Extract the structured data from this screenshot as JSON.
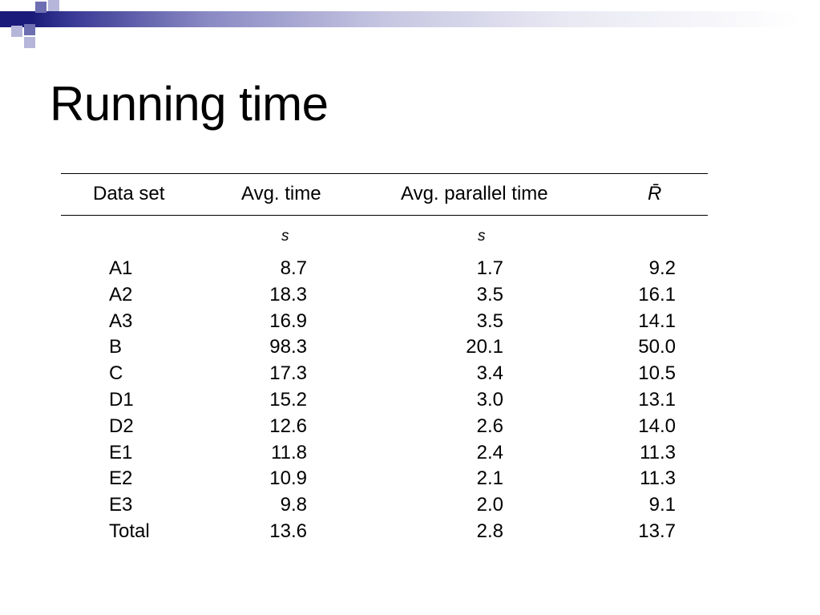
{
  "slide": {
    "title": "Running time"
  },
  "table": {
    "headers": {
      "data_set": "Data set",
      "avg_time": "Avg. time",
      "avg_parallel_time": "Avg. parallel time",
      "r_bar": "R̄"
    },
    "units": {
      "avg_time": "s",
      "avg_parallel_time": "s"
    },
    "rows": [
      {
        "data_set": "A1",
        "avg_time": "8.7",
        "avg_parallel_time": "1.7",
        "r_bar": "9.2"
      },
      {
        "data_set": "A2",
        "avg_time": "18.3",
        "avg_parallel_time": "3.5",
        "r_bar": "16.1"
      },
      {
        "data_set": "A3",
        "avg_time": "16.9",
        "avg_parallel_time": "3.5",
        "r_bar": "14.1"
      },
      {
        "data_set": "B",
        "avg_time": "98.3",
        "avg_parallel_time": "20.1",
        "r_bar": "50.0"
      },
      {
        "data_set": "C",
        "avg_time": "17.3",
        "avg_parallel_time": "3.4",
        "r_bar": "10.5"
      },
      {
        "data_set": "D1",
        "avg_time": "15.2",
        "avg_parallel_time": "3.0",
        "r_bar": "13.1"
      },
      {
        "data_set": "D2",
        "avg_time": "12.6",
        "avg_parallel_time": "2.6",
        "r_bar": "14.0"
      },
      {
        "data_set": "E1",
        "avg_time": "11.8",
        "avg_parallel_time": "2.4",
        "r_bar": "11.3"
      },
      {
        "data_set": "E2",
        "avg_time": "10.9",
        "avg_parallel_time": "2.1",
        "r_bar": "11.3"
      },
      {
        "data_set": "E3",
        "avg_time": "9.8",
        "avg_parallel_time": "2.0",
        "r_bar": "9.1"
      },
      {
        "data_set": "Total",
        "avg_time": "13.6",
        "avg_parallel_time": "2.8",
        "r_bar": "13.7"
      }
    ]
  },
  "colors": {
    "header_band_dark": "#1a1a7a",
    "header_band_mid": "#6e6eb2",
    "header_band_light": "#b6b6da"
  }
}
